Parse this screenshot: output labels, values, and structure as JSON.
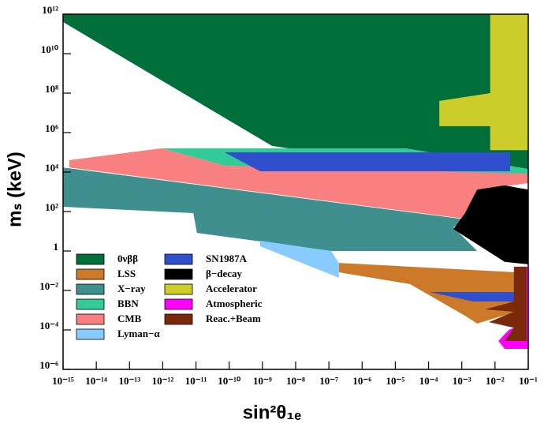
{
  "chart_data": {
    "type": "region",
    "xlabel": "sin²θ₁ₑ",
    "ylabel": "mₛ (keV)",
    "log_x": true,
    "log_y": true,
    "xlim": [
      1e-15,
      0.1
    ],
    "ylim": [
      1e-06,
      1000000000000.0
    ],
    "xticks": [
      {
        "value": 1e-15,
        "label": "10⁻¹⁵"
      },
      {
        "value": 1e-14,
        "label": "10⁻¹⁴"
      },
      {
        "value": 1e-13,
        "label": "10⁻¹³"
      },
      {
        "value": 1e-12,
        "label": "10⁻¹²"
      },
      {
        "value": 1e-11,
        "label": "10⁻¹¹"
      },
      {
        "value": 1e-10,
        "label": "10⁻¹⁰"
      },
      {
        "value": 1e-09,
        "label": "10⁻⁹"
      },
      {
        "value": 1e-08,
        "label": "10⁻⁸"
      },
      {
        "value": 1e-07,
        "label": "10⁻⁷"
      },
      {
        "value": 1e-06,
        "label": "10⁻⁶"
      },
      {
        "value": 1e-05,
        "label": "10⁻⁵"
      },
      {
        "value": 0.0001,
        "label": "10⁻⁴"
      },
      {
        "value": 0.001,
        "label": "10⁻³"
      },
      {
        "value": 0.01,
        "label": "10⁻²"
      },
      {
        "value": 0.1,
        "label": "10⁻¹"
      }
    ],
    "yticks": [
      {
        "value": 1e-06,
        "label": "10⁻⁶"
      },
      {
        "value": 0.0001,
        "label": "10⁻⁴"
      },
      {
        "value": 0.01,
        "label": "10⁻²"
      },
      1,
      {
        "value": 100,
        "label": "10²"
      },
      {
        "value": 10000.0,
        "label": "10⁴"
      },
      {
        "value": 1000000.0,
        "label": "10⁶"
      },
      {
        "value": 100000000.0,
        "label": "10⁸"
      },
      {
        "value": 10000000000.0,
        "label": "10¹⁰"
      },
      {
        "value": 1000000000000.0,
        "label": "10¹²"
      }
    ],
    "legend": "lower left",
    "series": [
      {
        "name": "0νββ",
        "color": "#006f3a",
        "x": [
          1e-15,
          0.1,
          0.1,
          1.95e-09,
          1e-15
        ],
        "y": [
          1000000000000.0,
          1000000000000.0,
          2750,
          210000.0,
          400000000000.0
        ]
      },
      {
        "name": "LSS",
        "color": "#cc7a2a",
        "x": [
          2e-07,
          0.044,
          0.044,
          0.0029,
          0.00126,
          2.75e-05,
          2e-07
        ],
        "y": [
          0.25,
          0.083,
          0.00083,
          0.00021,
          0.00052,
          0.021,
          0.083
        ]
      },
      {
        "name": "X−ray",
        "color": "#3f8f8f",
        "x": [
          1e-15,
          0.00126,
          0.00056,
          0.0029,
          1.17e-07,
          1.07e-11,
          8.3e-12,
          1e-15
        ],
        "y": [
          17000.0,
          40,
          16,
          1,
          1,
          8.3,
          83,
          174
        ]
      },
      {
        "name": "BBN",
        "color": "#33cc99",
        "x": [
          9.3e-13,
          2.1e-05,
          0.1,
          0.1,
          0.0022,
          7.2e-11
        ],
        "y": [
          160000.0,
          160000.0,
          14500.0,
          8300,
          8300,
          21000.0
        ]
      },
      {
        "name": "CMB",
        "color": "#f88080",
        "x": [
          1.55e-15,
          9.3e-13,
          7.2e-11,
          0.1,
          0.1,
          0.0038,
          0.00166,
          1.55e-15
        ],
        "y": [
          40000.0,
          160000.0,
          21000.0,
          8300,
          2750,
          1300,
          40,
          17000.0
        ]
      },
      {
        "name": "Lyman−α",
        "color": "#88ccff",
        "x": [
          8.5e-10,
          1.17e-07,
          2e-07,
          2e-07,
          8.5e-10
        ],
        "y": [
          3.3,
          1,
          0.25,
          0.044,
          1.74
        ]
      },
      {
        "name": "SN1987A",
        "color": "#2f4fcc",
        "x": [
          7.2e-11,
          0.0285,
          0.0285,
          8.5e-10,
          null,
          0.000107,
          0.044,
          0.044,
          0.0022
        ],
        "y": [
          100000.0,
          100000.0,
          11000.0,
          11000.0,
          null,
          0.0083,
          0.0083,
          0.00275,
          0.00275
        ]
      },
      {
        "name": "β−decay",
        "color": "#000000",
        "x": [
          0.0029,
          0.0195,
          0.1,
          0.1,
          0.0195,
          0.00056,
          0.00126,
          0.0022
        ],
        "y": [
          1300,
          2100,
          1300,
          0.21,
          0.28,
          13,
          83,
          525
        ]
      },
      {
        "name": "Accelerator",
        "color": "#cccc2a",
        "x": [
          0.0072,
          0.1,
          0.1,
          0.0072,
          0.0072,
          0.00021,
          0.00021,
          0.0072
        ],
        "y": [
          1000000000000.0,
          1000000000000.0,
          130000.0,
          130000.0,
          2100000.0,
          2100000.0,
          40000000.0,
          100000000.0
        ]
      },
      {
        "name": "Atmospheric",
        "color": "#ff00ff",
        "x": [
          0.057,
          0.1,
          0.1,
          0.0195,
          0.0126,
          0.026,
          0.057
        ],
        "y": [
          0.16,
          0.16,
          1.1e-05,
          1.1e-05,
          2.75e-05,
          0.0001,
          0.000174
        ]
      },
      {
        "name": "Reac.+Beam",
        "color": "#7a2a0a",
        "x": [
          0.037,
          0.089,
          0.089,
          0.0195,
          0.037,
          0.0065,
          0.037,
          0.005,
          0.037
        ],
        "y": [
          0.16,
          0.16,
          2.75e-05,
          2.75e-05,
          0.00013,
          0.00025,
          0.00083,
          0.0011,
          0.00275
        ]
      }
    ]
  }
}
